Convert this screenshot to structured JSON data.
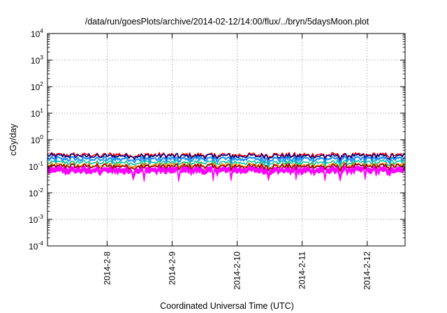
{
  "chart_data": {
    "type": "line",
    "title": "/data/run/goesPlots/archive/2014-02-12/14:00/flux/../bryn/5daysMoon.plot",
    "xlabel": "Coordinated Universal Time (UTC)",
    "ylabel": "cGy/day",
    "yscale": "log",
    "ylim": [
      0.0001,
      10000
    ],
    "xlim": [
      "2014-02-07 02:00",
      "2014-02-12 14:00"
    ],
    "grid": true,
    "legend": "none",
    "y_ticks": [
      {
        "base": "10",
        "exp": "-4",
        "value": 0.0001
      },
      {
        "base": "10",
        "exp": "-3",
        "value": 0.001
      },
      {
        "base": "10",
        "exp": "-2",
        "value": 0.01
      },
      {
        "base": "10",
        "exp": "-1",
        "value": 0.1
      },
      {
        "base": "10",
        "exp": "0",
        "value": 1
      },
      {
        "base": "10",
        "exp": "1",
        "value": 10
      },
      {
        "base": "10",
        "exp": "2",
        "value": 100
      },
      {
        "base": "10",
        "exp": "3",
        "value": 1000
      },
      {
        "base": "10",
        "exp": "4",
        "value": 10000
      }
    ],
    "x_ticks": [
      {
        "label": "2014-2-8",
        "date": "2014-02-08 00:00"
      },
      {
        "label": "2014-2-9",
        "date": "2014-02-09 00:00"
      },
      {
        "label": "2014-2-10",
        "date": "2014-02-10 00:00"
      },
      {
        "label": "2014-2-11",
        "date": "2014-02-11 00:00"
      },
      {
        "label": "2014-2-12",
        "date": "2014-02-12 00:00"
      }
    ],
    "series": [
      {
        "color": "#ff0000",
        "mean": 0.27,
        "spread": 0.06
      },
      {
        "color": "#000080",
        "mean": 0.245,
        "spread": 0.06
      },
      {
        "color": "#1e90ff",
        "mean": 0.19,
        "spread": 0.05
      },
      {
        "color": "#00c8a0",
        "mean": 0.14,
        "spread": 0.035
      },
      {
        "color": "#ff8c00",
        "mean": 0.11,
        "spread": 0.03
      },
      {
        "color": "#8b0000",
        "mean": 0.1,
        "spread": 0.025
      },
      {
        "color": "#ff00ff",
        "mean": 0.085,
        "spread": 0.02,
        "filled": true
      }
    ]
  }
}
